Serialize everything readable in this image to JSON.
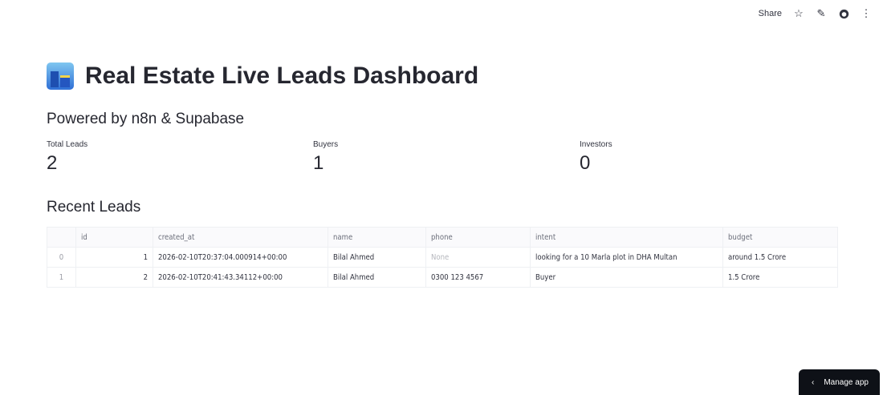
{
  "toolbar": {
    "share": "Share",
    "icons": [
      "star-icon",
      "pencil-icon",
      "github-icon",
      "more-vert-icon"
    ]
  },
  "header": {
    "icon": "cityscape-icon",
    "title": "Real Estate Live Leads Dashboard",
    "subtitle": "Powered by n8n & Supabase"
  },
  "metrics": [
    {
      "label": "Total Leads",
      "value": "2"
    },
    {
      "label": "Buyers",
      "value": "1"
    },
    {
      "label": "Investors",
      "value": "0"
    }
  ],
  "recent": {
    "heading": "Recent Leads",
    "columns": [
      "",
      "id",
      "created_at",
      "name",
      "phone",
      "intent",
      "budget"
    ],
    "rows": [
      [
        "0",
        "1",
        "2026-02-10T20:37:04.000914+00:00",
        "Bilal Ahmed",
        "None",
        "looking for a 10 Marla plot in DHA Multan",
        "around 1.5 Crore"
      ],
      [
        "1",
        "2",
        "2026-02-10T20:41:43.34112+00:00",
        "Bilal Ahmed",
        "0300 123 4567",
        "Buyer",
        "1.5 Crore"
      ]
    ]
  },
  "manage_app": "Manage app"
}
